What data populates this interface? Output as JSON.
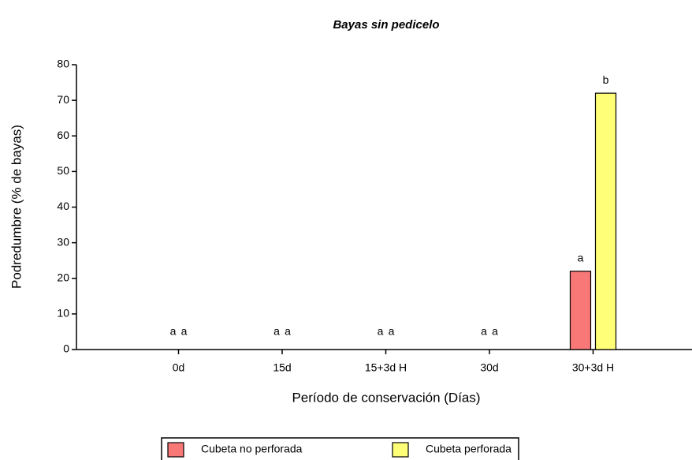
{
  "chart_data": {
    "type": "bar",
    "title": "Bayas sin pedicelo",
    "x_label": "Período de conservación (Días)",
    "y_label": "Podredumbre (% de bayas)",
    "categories": [
      "0d",
      "15d",
      "15+3d H",
      "30d",
      "30+3d H"
    ],
    "series": [
      {
        "name": "Cubeta no perforada",
        "color": "#f87878",
        "values": [
          0,
          0,
          0,
          0,
          22
        ],
        "letters": [
          "a",
          "a",
          "a",
          "a",
          "a"
        ]
      },
      {
        "name": "Cubeta perforada",
        "color": "#ffff78",
        "values": [
          0,
          0,
          0,
          0,
          72
        ],
        "letters": [
          "a",
          "a",
          "a",
          "a",
          "b"
        ]
      }
    ],
    "ylim": [
      0,
      80
    ],
    "yticks": [
      0,
      10,
      20,
      30,
      40,
      50,
      60,
      70,
      80
    ],
    "grid": false,
    "legend": "bottom"
  }
}
